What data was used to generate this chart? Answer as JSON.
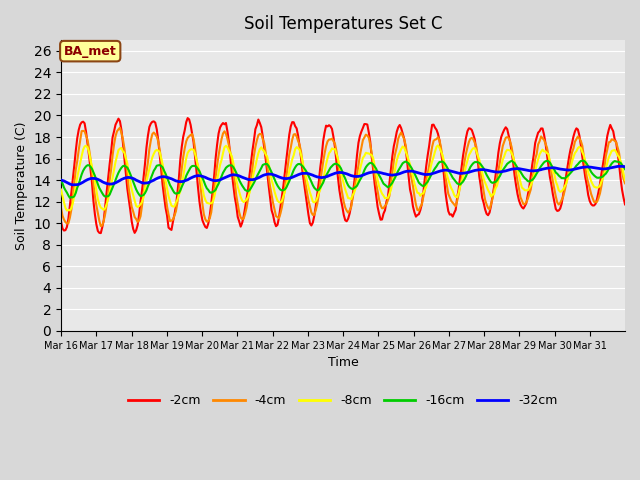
{
  "title": "Soil Temperatures Set C",
  "xlabel": "Time",
  "ylabel": "Soil Temperature (C)",
  "ylim": [
    0,
    27
  ],
  "yticks": [
    0,
    2,
    4,
    6,
    8,
    10,
    12,
    14,
    16,
    18,
    20,
    22,
    24,
    26
  ],
  "background_color": "#e8e8e8",
  "annotation_text": "BA_met",
  "annotation_bg": "#ffff99",
  "annotation_border": "#8B4513",
  "annotation_text_color": "#8B0000",
  "line_colors": [
    "#ff0000",
    "#ff8800",
    "#ffff00",
    "#00cc00",
    "#0000ff"
  ],
  "line_labels": [
    "-2cm",
    "-4cm",
    "-8cm",
    "-16cm",
    "-32cm"
  ],
  "line_widths": [
    1.5,
    1.5,
    1.5,
    1.5,
    2.0
  ],
  "date_labels": [
    "Mar 16",
    "Mar 17",
    "Mar 18",
    "Mar 19",
    "Mar 20",
    "Mar 21",
    "Mar 22",
    "Mar 23",
    "Mar 24",
    "Mar 25",
    "Mar 26",
    "Mar 27",
    "Mar 28",
    "Mar 29",
    "Mar 30",
    "Mar 31"
  ],
  "n_days": 16,
  "start_day": 16
}
